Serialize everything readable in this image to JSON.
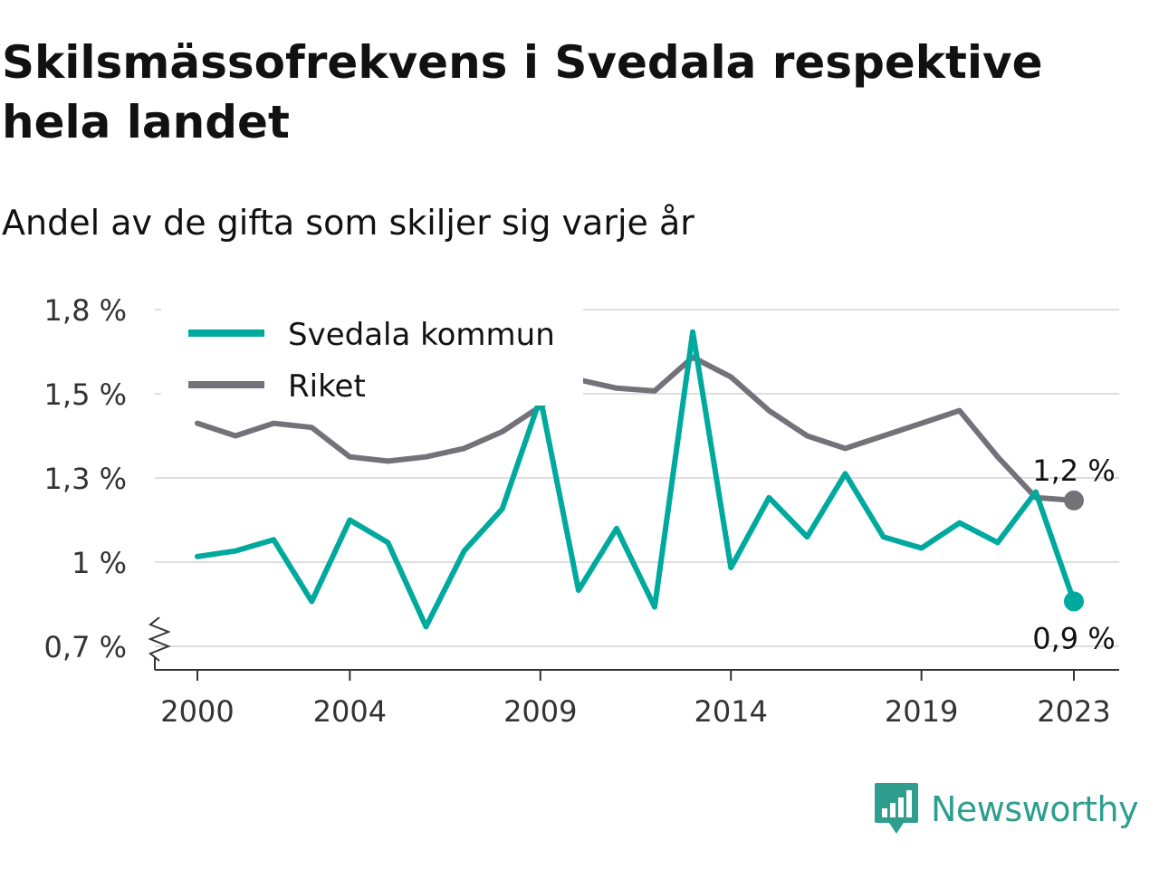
{
  "title": "Skilsmässofrekvens i Svedala respektive hela landet",
  "subtitle": "Andel av de gifta som skiljer sig varje år",
  "brand": {
    "name": "Newsworthy"
  },
  "chart_data": {
    "type": "line",
    "y_axis_break": true,
    "ylim": [
      0.7,
      1.8
    ],
    "y_ticks": [
      {
        "value": 0.7,
        "label": "0,7 %"
      },
      {
        "value": 1.0,
        "label": "1 %"
      },
      {
        "value": 1.3,
        "label": "1,3 %"
      },
      {
        "value": 1.5,
        "label": "1,5 %"
      },
      {
        "value": 1.8,
        "label": "1,8 %"
      }
    ],
    "x_ticks": [
      2000,
      2004,
      2009,
      2014,
      2019,
      2023
    ],
    "xlim": [
      2000,
      2023
    ],
    "grid": true,
    "legend_position": "top-left",
    "x": [
      2000,
      2001,
      2002,
      2003,
      2004,
      2005,
      2006,
      2007,
      2008,
      2009,
      2010,
      2011,
      2012,
      2013,
      2014,
      2015,
      2016,
      2017,
      2018,
      2019,
      2020,
      2021,
      2022,
      2023
    ],
    "series": [
      {
        "name": "Svedala kommun",
        "color": "#00a99d",
        "values": [
          1.02,
          1.04,
          1.08,
          0.86,
          1.15,
          1.07,
          0.77,
          1.04,
          1.19,
          1.49,
          0.9,
          1.12,
          0.84,
          1.72,
          0.98,
          1.23,
          1.09,
          1.31,
          1.09,
          1.05,
          1.14,
          1.07,
          1.25,
          0.86
        ],
        "end_label": "0,9 %"
      },
      {
        "name": "Riket",
        "color": "#737279",
        "values": [
          1.43,
          1.4,
          1.43,
          1.42,
          1.35,
          1.34,
          1.35,
          1.37,
          1.41,
          1.47,
          1.55,
          1.52,
          1.51,
          1.63,
          1.56,
          1.46,
          1.4,
          1.37,
          1.4,
          1.43,
          1.46,
          1.35,
          1.23,
          1.22
        ],
        "end_label": "1,2 %"
      }
    ]
  }
}
